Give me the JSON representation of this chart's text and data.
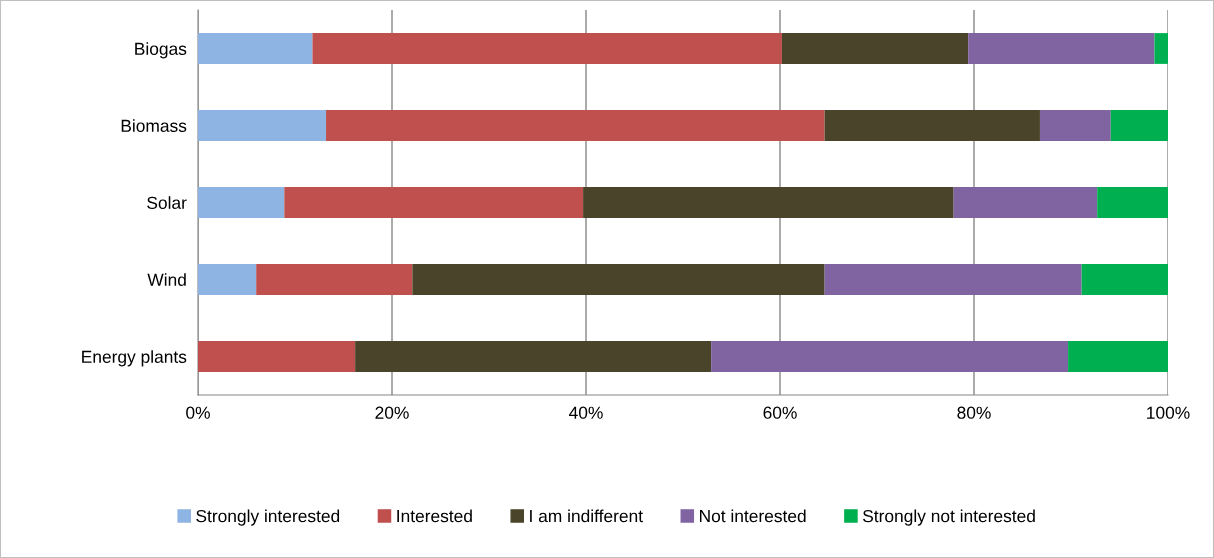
{
  "chart_data": {
    "type": "bar",
    "orientation": "horizontal",
    "stacked": true,
    "categories": [
      "Biogas",
      "Biomass",
      "Solar",
      "Wind",
      "Energy plants"
    ],
    "series": [
      {
        "name": "Strongly interested",
        "color": "#8eb4e3",
        "values": [
          11.8,
          13.2,
          8.9,
          6.0,
          0
        ]
      },
      {
        "name": "Interested",
        "color": "#c0504d",
        "values": [
          48.4,
          51.4,
          30.8,
          16.1,
          16.2
        ]
      },
      {
        "name": "I am indifferent",
        "color": "#4a452a",
        "values": [
          19.2,
          22.2,
          38.2,
          42.5,
          36.7
        ]
      },
      {
        "name": "Not interested",
        "color": "#8064a2",
        "values": [
          19.2,
          7.3,
          14.8,
          26.5,
          36.8
        ]
      },
      {
        "name": "Strongly not interested",
        "color": "#00b050",
        "values": [
          1.4,
          5.9,
          7.3,
          8.9,
          10.3
        ]
      }
    ],
    "xlim": [
      0,
      100
    ],
    "xticks": [
      {
        "value": 0,
        "label": "0%"
      },
      {
        "value": 20,
        "label": "20%"
      },
      {
        "value": 40,
        "label": "40%"
      },
      {
        "value": 60,
        "label": "60%"
      },
      {
        "value": 80,
        "label": "80%"
      },
      {
        "value": 100,
        "label": "100%"
      }
    ],
    "grid": "x",
    "legend": "bottom"
  }
}
